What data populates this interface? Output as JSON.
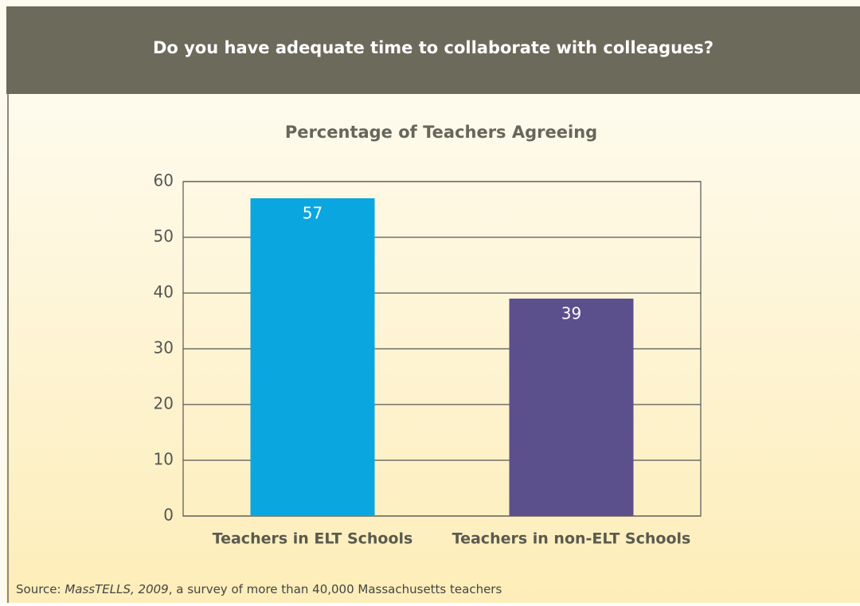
{
  "chart_data": {
    "type": "bar",
    "title": "Do you have adequate time to collaborate with colleagues?",
    "subtitle": "Percentage of Teachers Agreeing",
    "categories": [
      "Teachers in ELT Schools",
      "Teachers in non-ELT Schools"
    ],
    "values": [
      57,
      39
    ],
    "colors": [
      "#0aa6df",
      "#5b4f8c"
    ],
    "ylim": [
      0,
      60
    ],
    "yticks": [
      0,
      10,
      20,
      30,
      40,
      50,
      60
    ],
    "grid": true,
    "source_label": "Source:",
    "source_title": "MassTELLS, 2009",
    "source_text": ", a survey of more than 40,000 Massachusetts teachers"
  }
}
